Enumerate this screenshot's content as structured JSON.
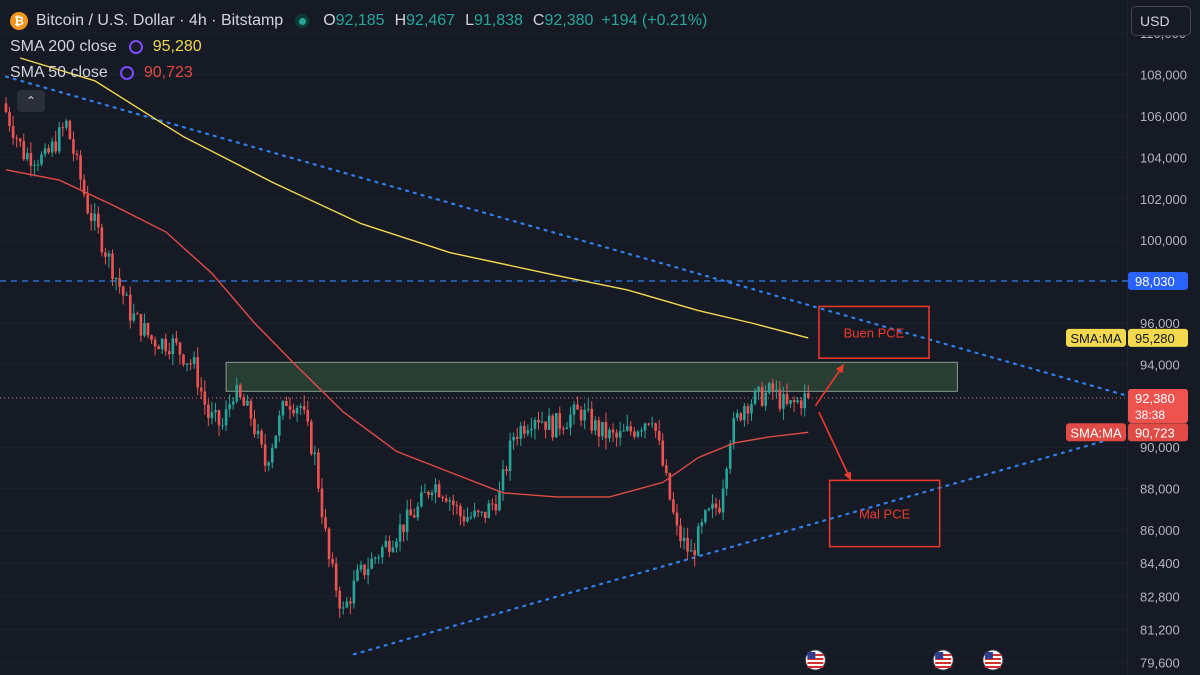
{
  "header": {
    "symbol_title": "Bitcoin / U.S. Dollar · 4h · Bitstamp",
    "ohlc": [
      {
        "k": "O",
        "v": "92,185"
      },
      {
        "k": "H",
        "v": "92,467"
      },
      {
        "k": "L",
        "v": "91,838"
      },
      {
        "k": "C",
        "v": "92,380"
      }
    ],
    "change": "+194 (+0.21%)",
    "sma200_label": "SMA 200 close",
    "sma200_value": "95,280",
    "sma50_label": "SMA 50 close",
    "sma50_value": "90,723",
    "logo_glyph": "₿",
    "collapse_glyph": "⌃"
  },
  "currency": "USD",
  "colors": {
    "background": "#161a25",
    "up": "#26a69a",
    "down": "#ef5350",
    "sma200": "#f2d94e",
    "sma50": "#e04b45",
    "trendline": "#2f80ed",
    "price_line_blue": "#2f80ed",
    "annotation": "#f23a2a",
    "zone_fill": "#2f4a3a"
  },
  "chart_data": {
    "type": "candlestick",
    "timeframe": "4h",
    "ylim": [
      79000,
      111600
    ],
    "y_ticks": [
      {
        "v": 110000,
        "label": "110,000"
      },
      {
        "v": 108000,
        "label": "108,000"
      },
      {
        "v": 106000,
        "label": "106,000"
      },
      {
        "v": 104000,
        "label": "104,000"
      },
      {
        "v": 102000,
        "label": "102,000"
      },
      {
        "v": 100000,
        "label": "100,000"
      },
      {
        "v": 96000,
        "label": "96,000"
      },
      {
        "v": 94000,
        "label": "94,000"
      },
      {
        "v": 90000,
        "label": "90,000"
      },
      {
        "v": 88000,
        "label": "88,000"
      },
      {
        "v": 86000,
        "label": "86,000"
      },
      {
        "v": 84400,
        "label": "84,400"
      },
      {
        "v": 82800,
        "label": "82,800"
      },
      {
        "v": 81200,
        "label": "81,200"
      },
      {
        "v": 79600,
        "label": "79,600"
      }
    ],
    "price_path": [
      [
        0,
        106600
      ],
      [
        6,
        104200
      ],
      [
        12,
        103900
      ],
      [
        18,
        105600
      ],
      [
        24,
        101600
      ],
      [
        30,
        99100
      ],
      [
        36,
        96500
      ],
      [
        42,
        95200
      ],
      [
        48,
        95000
      ],
      [
        54,
        93900
      ],
      [
        58,
        91500
      ],
      [
        62,
        91000
      ],
      [
        65,
        92700
      ],
      [
        70,
        91500
      ],
      [
        74,
        89200
      ],
      [
        80,
        92300
      ],
      [
        84,
        92000
      ],
      [
        88,
        89500
      ],
      [
        92,
        84500
      ],
      [
        96,
        82000
      ],
      [
        100,
        83700
      ],
      [
        106,
        84900
      ],
      [
        111,
        85900
      ],
      [
        117,
        87000
      ],
      [
        121,
        88300
      ],
      [
        125,
        87800
      ],
      [
        129,
        86700
      ],
      [
        135,
        86600
      ],
      [
        140,
        87700
      ],
      [
        144,
        90600
      ],
      [
        150,
        91600
      ],
      [
        155,
        91000
      ],
      [
        160,
        91500
      ],
      [
        163,
        91700
      ],
      [
        168,
        90800
      ],
      [
        173,
        90400
      ],
      [
        178,
        90900
      ],
      [
        183,
        91600
      ],
      [
        187,
        88300
      ],
      [
        190,
        85900
      ],
      [
        194,
        84800
      ],
      [
        198,
        86500
      ],
      [
        202,
        87300
      ],
      [
        205,
        90600
      ],
      [
        209,
        92100
      ],
      [
        213,
        92400
      ],
      [
        217,
        92700
      ],
      [
        221,
        91900
      ],
      [
        226,
        92380
      ]
    ],
    "sma200": {
      "name": "SMA 200 close",
      "points": [
        [
          4,
          108800
        ],
        [
          25,
          107700
        ],
        [
          50,
          105000
        ],
        [
          75,
          102800
        ],
        [
          100,
          100800
        ],
        [
          125,
          99400
        ],
        [
          155,
          98300
        ],
        [
          175,
          97600
        ],
        [
          195,
          96600
        ],
        [
          210,
          96000
        ],
        [
          226,
          95280
        ]
      ]
    },
    "sma50": {
      "name": "SMA 50 close",
      "points": [
        [
          0,
          103400
        ],
        [
          15,
          102900
        ],
        [
          30,
          101700
        ],
        [
          45,
          100400
        ],
        [
          58,
          98400
        ],
        [
          70,
          96000
        ],
        [
          82,
          93900
        ],
        [
          95,
          91700
        ],
        [
          110,
          89800
        ],
        [
          125,
          88800
        ],
        [
          140,
          87800
        ],
        [
          155,
          87600
        ],
        [
          170,
          87600
        ],
        [
          185,
          88300
        ],
        [
          195,
          89500
        ],
        [
          205,
          90200
        ],
        [
          215,
          90500
        ],
        [
          226,
          90723
        ]
      ]
    },
    "trendlines": [
      {
        "from": [
          0,
          107900
        ],
        "to": [
          318,
          92380
        ]
      },
      {
        "from": [
          98,
          80000
        ],
        "to": [
          318,
          90723
        ]
      }
    ],
    "resistance_zone": {
      "x_from": 62,
      "x_to": 268,
      "y_low": 92700,
      "y_high": 94100
    },
    "dashed_level": 98030,
    "price_labels": [
      {
        "price": 98030,
        "text": "98,030",
        "bg": "#2962ff",
        "fg": "#ffffff"
      },
      {
        "price": 95280,
        "text": "95,280",
        "tag": "SMA:MA",
        "bg": "#f2d94e",
        "fg": "#131722"
      },
      {
        "price": 92380,
        "text": "92,380",
        "sub": "38:38",
        "bg": "#ef5350",
        "fg": "#ffffff"
      },
      {
        "price": 90723,
        "text": "90,723",
        "tag": "SMA:MA",
        "bg": "#e04b45",
        "fg": "#ffffff"
      }
    ],
    "annotations": [
      {
        "text": "Buen PCE",
        "x0": 229,
        "x1": 260,
        "y_top": 96800,
        "y_bottom": 94300
      },
      {
        "text": "Mal PCE",
        "x0": 232,
        "x1": 263,
        "y_top": 88400,
        "y_bottom": 85200
      }
    ],
    "arrows": [
      {
        "from": [
          228,
          92000
        ],
        "to": [
          236,
          94000
        ]
      },
      {
        "from": [
          229,
          91700
        ],
        "to": [
          238,
          88400
        ]
      }
    ],
    "event_markers": [
      228,
      264,
      278
    ]
  }
}
